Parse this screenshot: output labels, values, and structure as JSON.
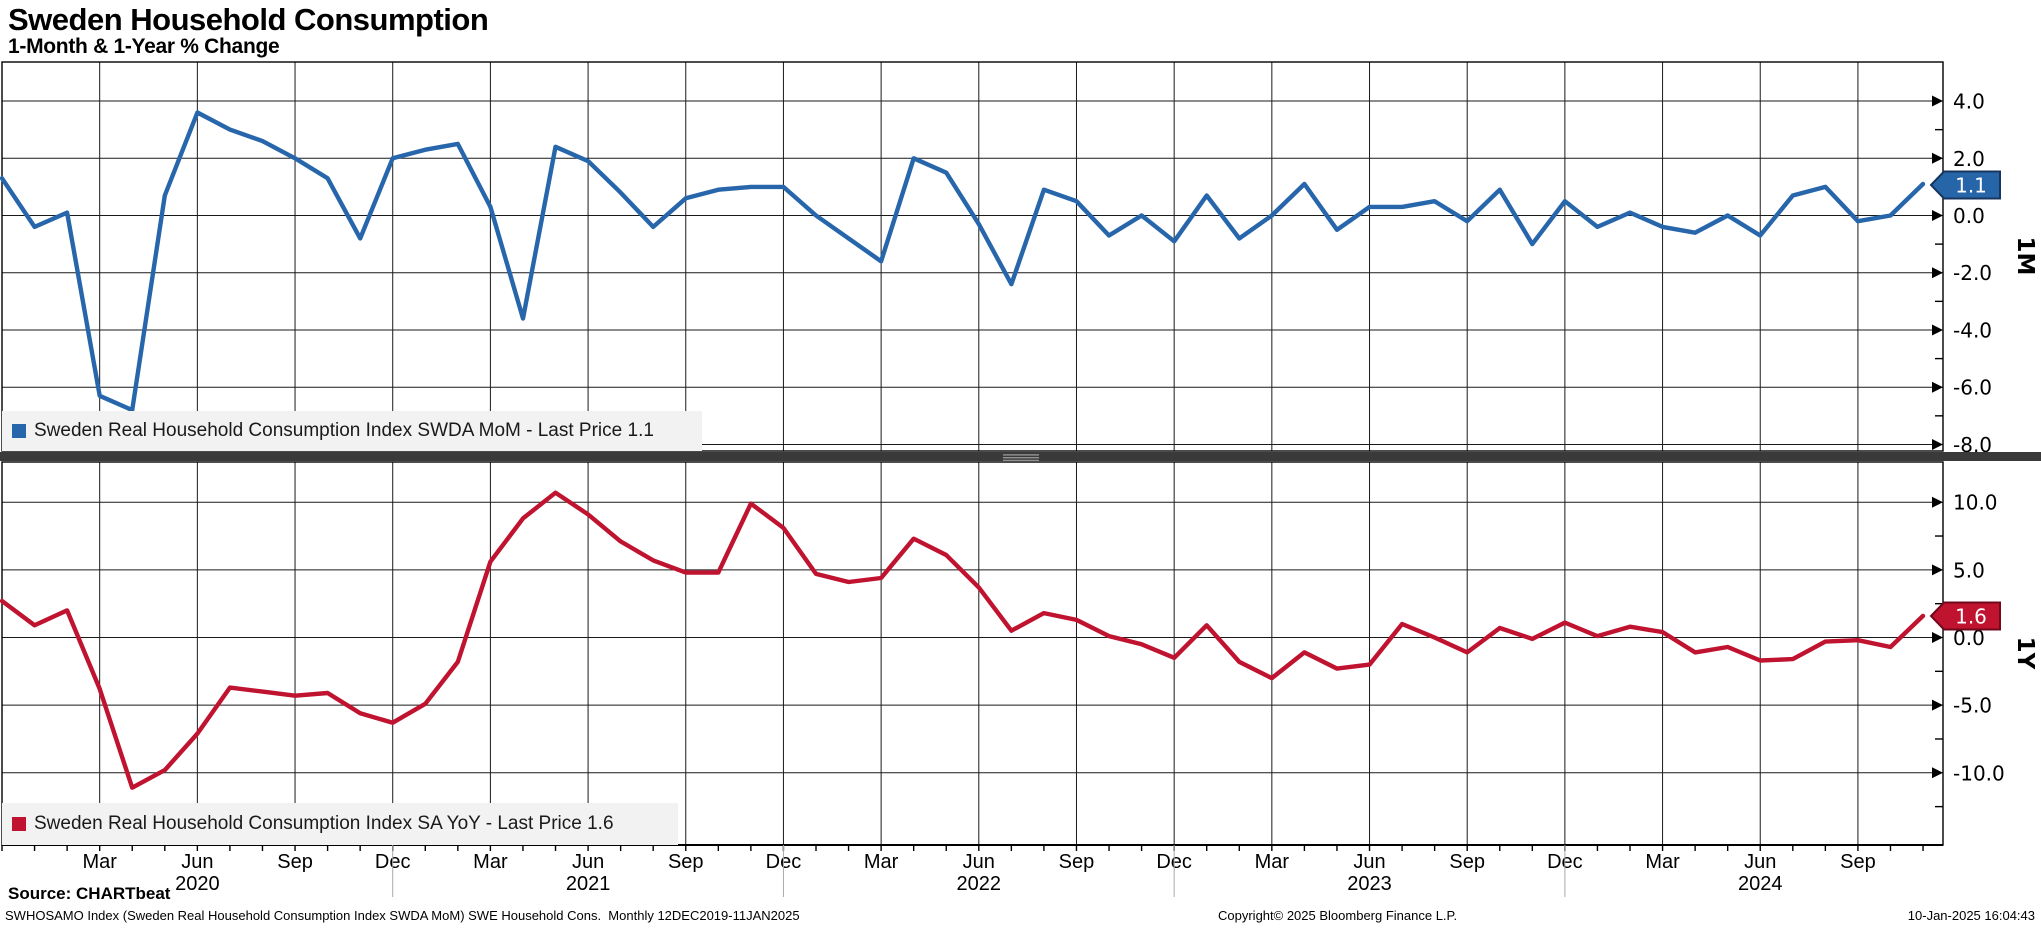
{
  "header": {
    "title": "Sweden Household Consumption",
    "subtitle": "1-Month & 1-Year % Change"
  },
  "top_panel": {
    "legend": "Sweden Real Household Consumption Index SWDA MoM - Last Price 1.1",
    "axis_title": "1M",
    "last_price": "1.1",
    "color": "#2766ab",
    "badge_fill": "#2565a8",
    "badge_border": "#17365f",
    "y_tick_labels": [
      "4.0",
      "2.0",
      "0.0",
      "-2.0",
      "-4.0",
      "-6.0",
      "-8.0"
    ]
  },
  "bottom_panel": {
    "legend": "Sweden Real Household Consumption Index SA YoY - Last Price 1.6",
    "axis_title": "1Y",
    "last_price": "1.6",
    "color": "#bf1330",
    "badge_fill": "#bf1330",
    "badge_border": "#73081d",
    "y_tick_labels": [
      "10.0",
      "5.0",
      "0.0",
      "-5.0",
      "-10.0"
    ]
  },
  "x_axis": {
    "quarter_ticks": [
      {
        "i": 3,
        "label": "Mar"
      },
      {
        "i": 6,
        "label": "Jun"
      },
      {
        "i": 9,
        "label": "Sep"
      },
      {
        "i": 12,
        "label": "Dec"
      },
      {
        "i": 15,
        "label": "Mar"
      },
      {
        "i": 18,
        "label": "Jun"
      },
      {
        "i": 21,
        "label": "Sep"
      },
      {
        "i": 24,
        "label": "Dec"
      },
      {
        "i": 27,
        "label": "Mar"
      },
      {
        "i": 30,
        "label": "Jun"
      },
      {
        "i": 33,
        "label": "Sep"
      },
      {
        "i": 36,
        "label": "Dec"
      },
      {
        "i": 39,
        "label": "Mar"
      },
      {
        "i": 42,
        "label": "Jun"
      },
      {
        "i": 45,
        "label": "Sep"
      },
      {
        "i": 48,
        "label": "Dec"
      },
      {
        "i": 51,
        "label": "Mar"
      },
      {
        "i": 54,
        "label": "Jun"
      },
      {
        "i": 57,
        "label": "Sep"
      }
    ],
    "year_ticks": [
      {
        "i": 6,
        "label": "2020"
      },
      {
        "i": 18,
        "label": "2021"
      },
      {
        "i": 30,
        "label": "2022"
      },
      {
        "i": 42,
        "label": "2023"
      },
      {
        "i": 54,
        "label": "2024"
      }
    ]
  },
  "chart_data": {
    "type": "line",
    "frequency": "monthly",
    "grid": true,
    "legend_position": "top-left-inside-panel",
    "categories": [
      "2019-12",
      "2020-01",
      "2020-02",
      "2020-03",
      "2020-04",
      "2020-05",
      "2020-06",
      "2020-07",
      "2020-08",
      "2020-09",
      "2020-10",
      "2020-11",
      "2020-12",
      "2021-01",
      "2021-02",
      "2021-03",
      "2021-04",
      "2021-05",
      "2021-06",
      "2021-07",
      "2021-08",
      "2021-09",
      "2021-10",
      "2021-11",
      "2021-12",
      "2022-01",
      "2022-02",
      "2022-03",
      "2022-04",
      "2022-05",
      "2022-06",
      "2022-07",
      "2022-08",
      "2022-09",
      "2022-10",
      "2022-11",
      "2022-12",
      "2023-01",
      "2023-02",
      "2023-03",
      "2023-04",
      "2023-05",
      "2023-06",
      "2023-07",
      "2023-08",
      "2023-09",
      "2023-10",
      "2023-11",
      "2023-12",
      "2024-01",
      "2024-02",
      "2024-03",
      "2024-04",
      "2024-05",
      "2024-06",
      "2024-07",
      "2024-08",
      "2024-09",
      "2024-10",
      "2024-11"
    ],
    "series": [
      {
        "name": "Sweden Real Household Consumption Index SWDA MoM",
        "panel": "1M",
        "color": "#2766ab",
        "last_price": 1.1,
        "ylim": [
          -8.5,
          5.4
        ],
        "y_gridlines": [
          4,
          2,
          0,
          -2,
          -4,
          -6,
          -8
        ],
        "y_minor_ticks": [
          3,
          1,
          -1,
          -3,
          -5,
          -7
        ],
        "values": [
          1.3,
          -0.4,
          0.1,
          -6.3,
          -6.8,
          0.7,
          3.6,
          3.0,
          2.6,
          2.0,
          1.3,
          -0.8,
          2.0,
          2.3,
          2.5,
          0.3,
          -3.6,
          2.4,
          1.9,
          0.8,
          -0.4,
          0.6,
          0.9,
          1.0,
          1.0,
          0.0,
          -0.8,
          -1.6,
          2.0,
          1.5,
          -0.3,
          -2.4,
          0.9,
          0.5,
          -0.7,
          0.0,
          -0.9,
          0.7,
          -0.8,
          0.0,
          1.1,
          -0.5,
          0.3,
          0.3,
          0.5,
          -0.2,
          0.9,
          -1.0,
          0.5,
          -0.4,
          0.1,
          -0.4,
          -0.6,
          0.0,
          -0.7,
          0.7,
          1.0,
          -0.2,
          0.0,
          1.1
        ]
      },
      {
        "name": "Sweden Real Household Consumption Index SA YoY",
        "panel": "1Y",
        "color": "#bf1330",
        "last_price": 1.6,
        "ylim": [
          -15.3,
          13.0
        ],
        "y_gridlines": [
          10,
          5,
          0,
          -5,
          -10
        ],
        "y_minor_ticks": [
          7.5,
          2.5,
          -2.5,
          -7.5,
          -12.5
        ],
        "values": [
          2.7,
          0.9,
          2.0,
          -3.8,
          -11.1,
          -9.8,
          -7.1,
          -3.7,
          -4.0,
          -4.3,
          -4.1,
          -5.6,
          -6.3,
          -4.9,
          -1.8,
          5.6,
          8.8,
          10.7,
          9.1,
          7.1,
          5.7,
          4.8,
          4.8,
          9.9,
          8.1,
          4.7,
          4.1,
          4.4,
          7.3,
          6.1,
          3.7,
          0.5,
          1.8,
          1.3,
          0.1,
          -0.5,
          -1.5,
          0.9,
          -1.8,
          -3.0,
          -1.1,
          -2.3,
          -2.0,
          1.0,
          0.0,
          -1.1,
          0.7,
          -0.1,
          1.1,
          0.1,
          0.8,
          0.4,
          -1.1,
          -0.7,
          -1.7,
          -1.6,
          -0.3,
          -0.2,
          -0.7,
          1.6
        ]
      }
    ]
  },
  "footer": {
    "source": "Source: CHARTbeat",
    "description": "SWHOSAMO Index (Sweden Real Household Consumption Index SWDA MoM) SWE Household Cons.  Monthly 12DEC2019-11JAN2025",
    "copyright": "Copyright© 2025 Bloomberg Finance L.P.",
    "datetime": "10-Jan-2025 16:04:43"
  }
}
